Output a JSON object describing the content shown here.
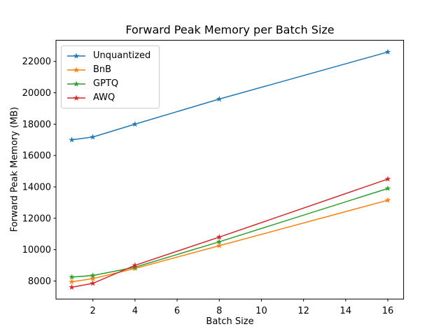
{
  "chart_data": {
    "type": "line",
    "title": "Forward Peak Memory per Batch Size",
    "xlabel": "Batch Size",
    "ylabel": "Forward Peak Memory (MB)",
    "x": [
      1,
      2,
      4,
      8,
      16
    ],
    "series": [
      {
        "name": "Unquantized",
        "color": "#1f77b4",
        "values": [
          17000,
          17180,
          18000,
          19600,
          22600
        ]
      },
      {
        "name": "BnB",
        "color": "#ff7f0e",
        "values": [
          7950,
          8150,
          8800,
          10250,
          13150
        ]
      },
      {
        "name": "GPTQ",
        "color": "#2ca02c",
        "values": [
          8250,
          8350,
          8880,
          10500,
          13900
        ]
      },
      {
        "name": "AWQ",
        "color": "#d62728",
        "values": [
          7600,
          7850,
          9000,
          10800,
          14500
        ]
      }
    ],
    "xticks": [
      2,
      4,
      6,
      8,
      10,
      12,
      14,
      16
    ],
    "yticks": [
      8000,
      10000,
      12000,
      14000,
      16000,
      18000,
      20000,
      22000
    ],
    "xlim": [
      0.25,
      16.75
    ],
    "ylim": [
      6850,
      23350
    ],
    "marker": "star",
    "line_width": 1.5,
    "grid": false,
    "legend_position": "upper-left",
    "axis_color": "#000000",
    "background": "#ffffff"
  }
}
